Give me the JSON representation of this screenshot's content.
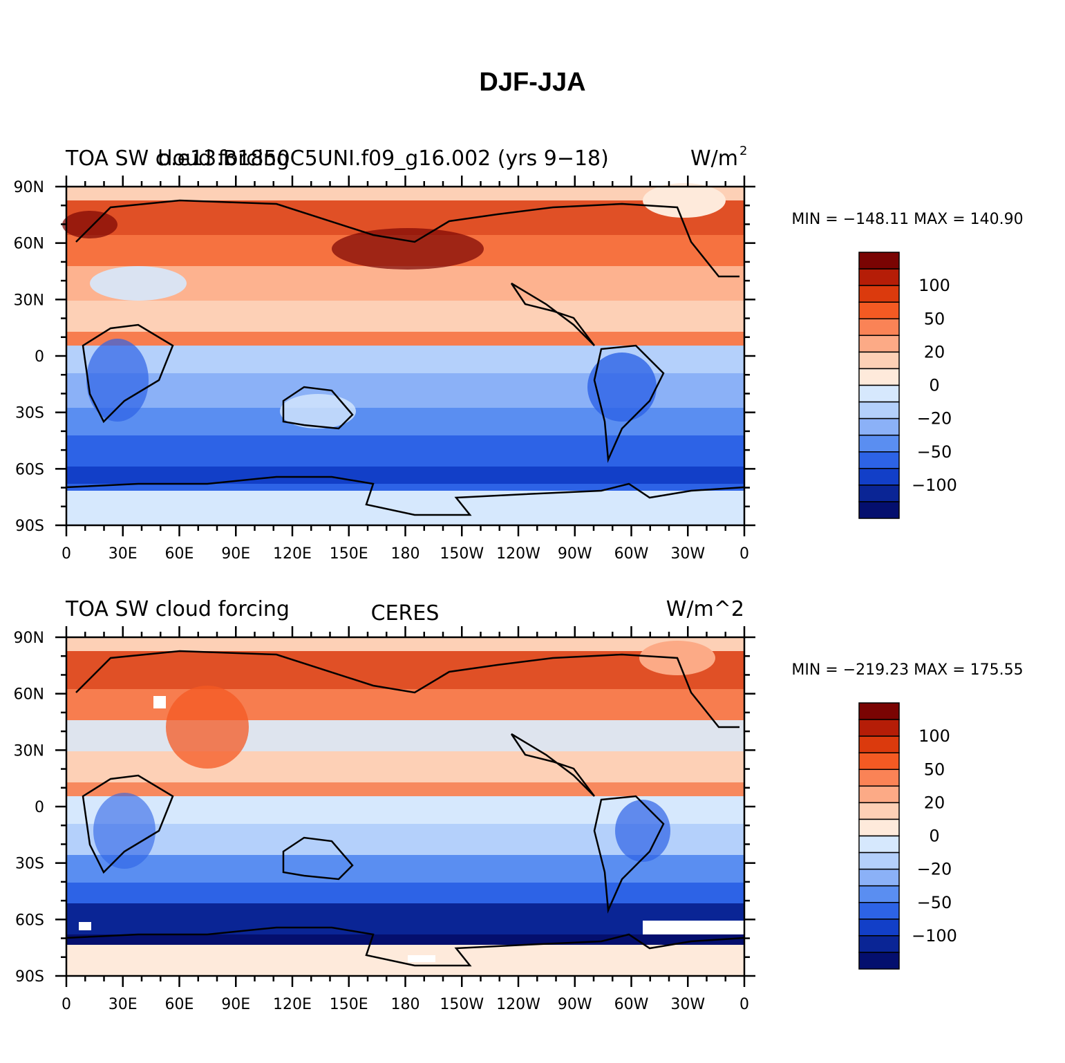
{
  "title": "DJF-JJA",
  "colorbar": {
    "levels": [
      "",
      "100",
      "",
      "50",
      "",
      "20",
      "",
      "0",
      "",
      "-20",
      "",
      "-50",
      "",
      "-100",
      ""
    ],
    "label_texts": [
      "100",
      "50",
      "20",
      "0",
      "−20",
      "−50",
      "−100"
    ],
    "colors": [
      "#7a0403",
      "#b51d07",
      "#db3a0d",
      "#f45a23",
      "#fa8356",
      "#fcaa86",
      "#fdd0b6",
      "#feeadb",
      "#d6e8fd",
      "#b4d0fb",
      "#8bb1f7",
      "#5a8ef1",
      "#2d63e6",
      "#123fc8",
      "#0a2595",
      "#040f6e"
    ]
  },
  "axes": {
    "lat_labels": [
      "90N",
      "60N",
      "30N",
      "0",
      "30S",
      "60S",
      "90S"
    ],
    "lon_labels": [
      "0",
      "30E",
      "60E",
      "90E",
      "120E",
      "150E",
      "180",
      "150W",
      "120W",
      "90W",
      "60W",
      "30W",
      "0"
    ]
  },
  "panels": [
    {
      "left_title_a": "TOA SW cloud forcing",
      "left_title_b": "b.e13.B1850C5UNI.f09_g16.002 (yrs 9−18)",
      "center_title": "",
      "units": "W/m",
      "units_sup": "2",
      "stats": "MIN = −148.11  MAX = 140.90"
    },
    {
      "left_title_a": "TOA SW cloud forcing",
      "left_title_b": "",
      "center_title": "CERES",
      "units": "W/m^2",
      "units_sup": "",
      "stats": "MIN = −219.23  MAX = 175.55"
    }
  ]
}
